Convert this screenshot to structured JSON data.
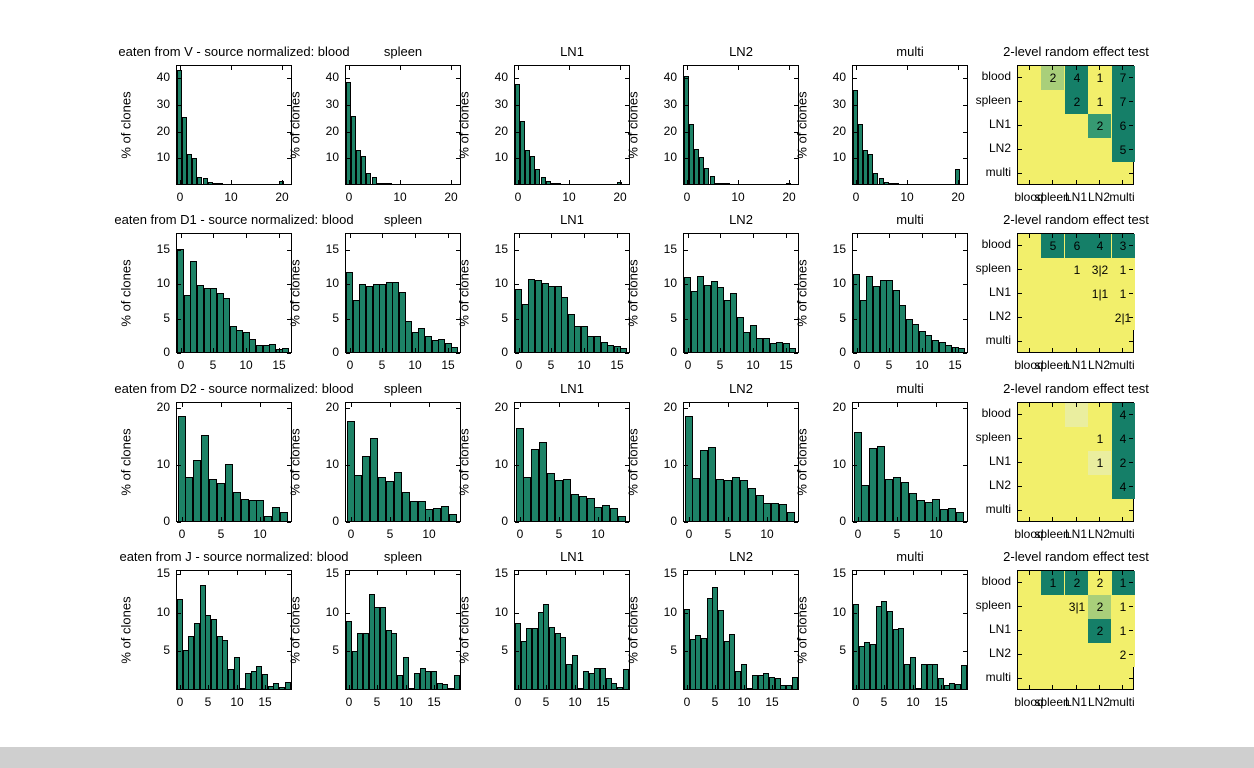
{
  "figure": {
    "background": "#ffffff",
    "bar_color": "#1d8266",
    "bar_edge_color": "#000000",
    "axis_color": "#000000",
    "bottom_strip_color": "#cfcfcf"
  },
  "chart_data": {
    "type": "bar",
    "subtype": "histogram-grid-with-heatmaps",
    "ylabel": "% of clones",
    "heatmap_palette": {
      "yellow": "#f2ef6b",
      "pale": "#eaee9f",
      "light": "#a9cf7a",
      "mid": "#369a72",
      "dark": "#157f68"
    },
    "rows": [
      {
        "hist": {
          "ylim": 45,
          "yticks": [
            10,
            20,
            30,
            40
          ],
          "xlim": [
            -0.7,
            22
          ],
          "xticks": [
            0,
            10,
            20
          ]
        },
        "panels": [
          {
            "title": "eaten from V - source normalized: blood",
            "values": [
              43,
              25.5,
              11.5,
              10,
              3,
              2.5,
              1,
              0.4,
              0.2,
              0,
              0,
              0,
              0,
              0,
              0,
              0,
              0,
              0,
              0,
              0,
              1.5
            ]
          },
          {
            "title": "spleen",
            "values": [
              38.5,
              26,
              13,
              11,
              4.5,
              3,
              0.8,
              0.4,
              0.2,
              0,
              0,
              0,
              0,
              0,
              0,
              0,
              0,
              0,
              0,
              0,
              0
            ]
          },
          {
            "title": "LN1",
            "values": [
              38,
              24,
              13,
              11,
              6,
              3,
              1.5,
              0.8,
              0.4,
              0,
              0,
              0,
              0,
              0,
              0,
              0,
              0,
              0,
              0,
              0,
              1
            ]
          },
          {
            "title": "LN2",
            "values": [
              41,
              23,
              13.5,
              10.5,
              6.5,
              3.5,
              0.8,
              0.4,
              0.2,
              0,
              0,
              0,
              0,
              0,
              0,
              0,
              0,
              0,
              0,
              0,
              0.6
            ]
          },
          {
            "title": "multi",
            "values": [
              35.5,
              23,
              13,
              11.5,
              4.5,
              2.5,
              1,
              0.7,
              0.4,
              0,
              0,
              0,
              0,
              0,
              0,
              0,
              0,
              0,
              0,
              0,
              6
            ]
          }
        ],
        "heatmap": {
          "title": "2-level random effect test",
          "row_labels": [
            "blood",
            "spleen",
            "LN1",
            "LN2",
            "multi"
          ],
          "col_labels": [
            "blood",
            "spleen",
            "LN1",
            "LN2",
            "multi"
          ],
          "cells": [
            {
              "r": 0,
              "c": 1,
              "v": "2",
              "k": "light"
            },
            {
              "r": 0,
              "c": 2,
              "v": "4",
              "k": "dark"
            },
            {
              "r": 0,
              "c": 3,
              "v": "1",
              "k": "yellow"
            },
            {
              "r": 0,
              "c": 4,
              "v": "7",
              "k": "dark"
            },
            {
              "r": 1,
              "c": 2,
              "v": "2",
              "k": "dark"
            },
            {
              "r": 1,
              "c": 3,
              "v": "1",
              "k": "yellow"
            },
            {
              "r": 1,
              "c": 4,
              "v": "7",
              "k": "dark"
            },
            {
              "r": 2,
              "c": 3,
              "v": "2",
              "k": "mid"
            },
            {
              "r": 2,
              "c": 4,
              "v": "6",
              "k": "dark"
            },
            {
              "r": 3,
              "c": 4,
              "v": "5",
              "k": "dark"
            }
          ]
        }
      },
      {
        "hist": {
          "ylim": 17.5,
          "yticks": [
            0,
            5,
            10,
            15
          ],
          "xlim": [
            -0.7,
            17
          ],
          "xticks": [
            0,
            5,
            10,
            15
          ]
        },
        "panels": [
          {
            "title": "eaten from D1 - source normalized: blood",
            "values": [
              15.1,
              8.5,
              13.4,
              9.9,
              9.5,
              9.5,
              8.8,
              8.0,
              3.9,
              3.4,
              3.1,
              2.0,
              1.2,
              1.2,
              1.3,
              0.6,
              0.7
            ]
          },
          {
            "title": "spleen",
            "values": [
              11.8,
              7.7,
              10.0,
              9.7,
              10.0,
              10.1,
              10.3,
              10.3,
              8.9,
              4.7,
              3.0,
              3.6,
              2.5,
              1.9,
              2.0,
              1.5,
              0.9
            ]
          },
          {
            "title": "LN1",
            "values": [
              9.4,
              7.2,
              10.8,
              10.6,
              10.2,
              9.7,
              9.8,
              8.1,
              5.7,
              3.9,
              4.0,
              2.5,
              2.5,
              1.6,
              1.1,
              1.0,
              0.7
            ]
          },
          {
            "title": "LN2",
            "values": [
              11.1,
              9.0,
              11.3,
              9.9,
              10.5,
              9.6,
              7.8,
              8.7,
              5.3,
              3.1,
              4.1,
              2.2,
              2.2,
              1.5,
              1.6,
              1.5,
              0.7
            ]
          },
          {
            "title": "multi",
            "values": [
              11.5,
              7.8,
              11.2,
              9.8,
              10.6,
              10.6,
              9.2,
              7.0,
              5.0,
              4.3,
              3.2,
              2.6,
              1.9,
              1.6,
              1.2,
              0.9,
              0.7
            ]
          }
        ],
        "heatmap": {
          "title": "2-level random effect test",
          "row_labels": [
            "blood",
            "spleen",
            "LN1",
            "LN2",
            "multi"
          ],
          "col_labels": [
            "blood",
            "spleen",
            "LN1",
            "LN2",
            "multi"
          ],
          "cells": [
            {
              "r": 0,
              "c": 1,
              "v": "5",
              "k": "dark"
            },
            {
              "r": 0,
              "c": 2,
              "v": "6",
              "k": "dark"
            },
            {
              "r": 0,
              "c": 3,
              "v": "4",
              "k": "dark"
            },
            {
              "r": 0,
              "c": 4,
              "v": "3",
              "k": "dark"
            },
            {
              "r": 1,
              "c": 2,
              "v": "1",
              "k": "yellow"
            },
            {
              "r": 1,
              "c": 3,
              "v": "3|2",
              "k": "yellow"
            },
            {
              "r": 1,
              "c": 4,
              "v": "1",
              "k": "yellow"
            },
            {
              "r": 2,
              "c": 3,
              "v": "1|1",
              "k": "yellow"
            },
            {
              "r": 2,
              "c": 4,
              "v": "1",
              "k": "yellow"
            },
            {
              "r": 3,
              "c": 4,
              "v": "2|1",
              "k": "yellow"
            }
          ]
        }
      },
      {
        "hist": {
          "ylim": 21,
          "yticks": [
            0,
            10,
            20
          ],
          "xlim": [
            -0.7,
            14
          ],
          "xticks": [
            0,
            5,
            10
          ]
        },
        "panels": [
          {
            "title": "eaten from D2 - source normalized: blood",
            "values": [
              18.5,
              7.9,
              10.8,
              15.2,
              7.5,
              6.8,
              10.2,
              5.3,
              4.1,
              3.9,
              3.9,
              1.0,
              2.6,
              1.7
            ]
          },
          {
            "title": "spleen",
            "values": [
              17.6,
              8.2,
              11.5,
              14.7,
              7.9,
              7.1,
              8.8,
              5.3,
              3.7,
              3.7,
              2.3,
              2.4,
              2.8,
              1.4
            ]
          },
          {
            "title": "LN1",
            "values": [
              16.5,
              7.8,
              12.8,
              14.0,
              8.5,
              7.3,
              7.5,
              4.9,
              4.5,
              4.2,
              2.7,
              2.9,
              2.4,
              1.1
            ]
          },
          {
            "title": "LN2",
            "values": [
              18.6,
              7.7,
              12.6,
              13.2,
              7.6,
              7.3,
              7.9,
              7.3,
              5.9,
              4.8,
              3.4,
              3.4,
              3.1,
              1.8
            ]
          },
          {
            "title": "multi",
            "values": [
              15.8,
              6.4,
              12.9,
              13.3,
              7.5,
              7.8,
              7.0,
              5.0,
              3.8,
              3.5,
              4.1,
              2.3,
              2.4,
              1.7
            ]
          }
        ],
        "heatmap": {
          "title": "2-level random effect test",
          "row_labels": [
            "blood",
            "spleen",
            "LN1",
            "LN2",
            "multi"
          ],
          "col_labels": [
            "blood",
            "spleen",
            "LN1",
            "LN2",
            "multi"
          ],
          "cells": [
            {
              "r": 0,
              "c": 2,
              "v": "",
              "k": "pale"
            },
            {
              "r": 0,
              "c": 4,
              "v": "4",
              "k": "dark"
            },
            {
              "r": 1,
              "c": 3,
              "v": "1",
              "k": "yellow"
            },
            {
              "r": 1,
              "c": 4,
              "v": "4",
              "k": "dark"
            },
            {
              "r": 2,
              "c": 3,
              "v": "1",
              "k": "pale"
            },
            {
              "r": 2,
              "c": 4,
              "v": "2",
              "k": "dark"
            },
            {
              "r": 3,
              "c": 4,
              "v": "4",
              "k": "dark"
            }
          ]
        }
      },
      {
        "hist": {
          "ylim": 15.5,
          "yticks": [
            5,
            10,
            15
          ],
          "xlim": [
            -0.7,
            19.8
          ],
          "xticks": [
            0,
            5,
            10,
            15
          ]
        },
        "panels": [
          {
            "title": "eaten from J - source normalized: blood",
            "values": [
              11.8,
              5.2,
              7.0,
              8.6,
              13.6,
              9.7,
              9.2,
              7.0,
              6.5,
              2.7,
              4.2,
              0.3,
              2.2,
              2.5,
              3.1,
              2.1,
              0.5,
              0.9,
              0.4,
              1.0
            ]
          },
          {
            "title": "spleen",
            "values": [
              8.9,
              5.0,
              7.3,
              7.3,
              12.4,
              10.7,
              10.7,
              7.8,
              7.3,
              1.9,
              4.3,
              0.3,
              2.2,
              2.9,
              2.5,
              2.5,
              0.9,
              0.8,
              0.3,
              1.9
            ]
          },
          {
            "title": "LN1",
            "values": [
              8.7,
              6.3,
              8.0,
              8.0,
              10.1,
              11.1,
              8.1,
              7.3,
              6.9,
              3.3,
              4.5,
              0.3,
              2.4,
              2.2,
              2.9,
              2.9,
              1.5,
              0.9,
              0.4,
              2.7
            ]
          },
          {
            "title": "LN2",
            "values": [
              10.5,
              6.6,
              7.1,
              6.7,
              11.9,
              13.3,
              10.3,
              6.3,
              7.2,
              2.5,
              3.4,
              0.3,
              1.9,
              2.0,
              2.2,
              1.7,
              1.5,
              0.6,
              0.7,
              1.7
            ]
          },
          {
            "title": "multi",
            "values": [
              11.1,
              5.7,
              6.2,
              6.0,
              10.9,
              11.5,
              10.2,
              7.9,
              8.0,
              3.3,
              4.3,
              0.3,
              3.3,
              3.3,
              3.3,
              1.5,
              0.7,
              0.9,
              0.8,
              3.2
            ]
          }
        ],
        "heatmap": {
          "title": "2-level random effect test",
          "row_labels": [
            "blood",
            "spleen",
            "LN1",
            "LN2",
            "multi"
          ],
          "col_labels": [
            "blood",
            "spleen",
            "LN1",
            "LN2",
            "multi"
          ],
          "cells": [
            {
              "r": 0,
              "c": 1,
              "v": "1",
              "k": "dark"
            },
            {
              "r": 0,
              "c": 2,
              "v": "2",
              "k": "dark"
            },
            {
              "r": 0,
              "c": 3,
              "v": "2",
              "k": "yellow"
            },
            {
              "r": 0,
              "c": 4,
              "v": "1",
              "k": "dark"
            },
            {
              "r": 1,
              "c": 2,
              "v": "3|1",
              "k": "yellow"
            },
            {
              "r": 1,
              "c": 3,
              "v": "2",
              "k": "light"
            },
            {
              "r": 1,
              "c": 4,
              "v": "1",
              "k": "yellow"
            },
            {
              "r": 2,
              "c": 3,
              "v": "2",
              "k": "dark"
            },
            {
              "r": 2,
              "c": 4,
              "v": "1",
              "k": "yellow"
            },
            {
              "r": 3,
              "c": 4,
              "v": "2",
              "k": "yellow"
            }
          ]
        }
      }
    ]
  }
}
